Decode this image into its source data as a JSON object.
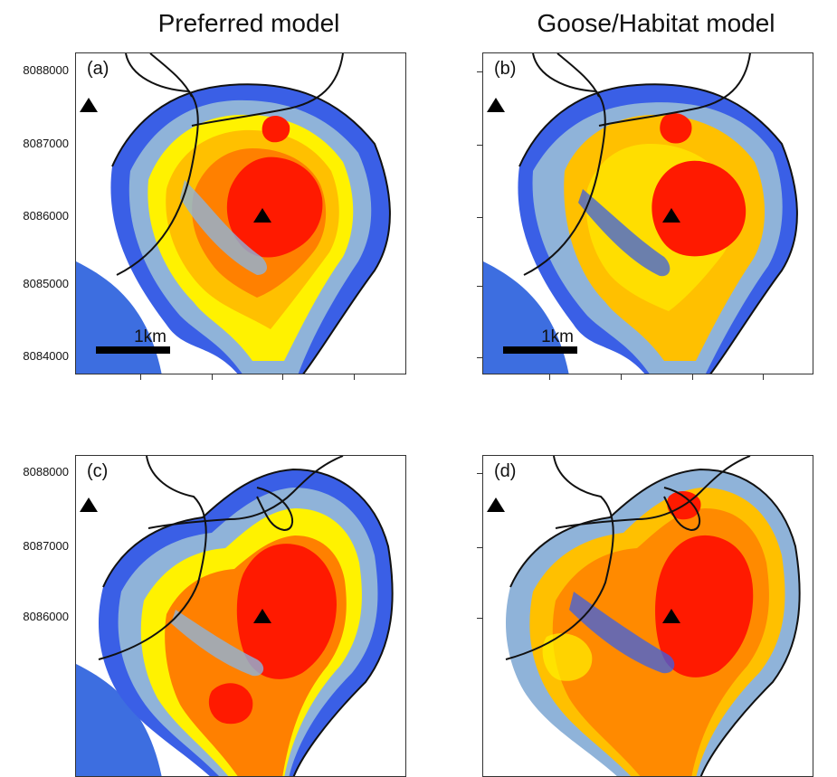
{
  "column_titles": {
    "left": "Preferred model",
    "right": "Goose/Habitat model"
  },
  "y_axis_labels": [
    "8088000",
    "8087000",
    "8086000",
    "8085000",
    "8084000"
  ],
  "panels": [
    {
      "label": "(a)",
      "scale_label": "1km",
      "has_scalebar": true
    },
    {
      "label": "(b)",
      "scale_label": "1km",
      "has_scalebar": true
    },
    {
      "label": "(c)",
      "scale_label": "",
      "has_scalebar": false
    },
    {
      "label": "(d)",
      "scale_label": "",
      "has_scalebar": false
    }
  ],
  "colors": {
    "water": "#3d6ee0",
    "low": "#3a5fe6",
    "low_mid": "#8fb3d9",
    "mid": "#fff200",
    "mid_high": "#ffc000",
    "high": "#ff8000",
    "very_high": "#ff1a00",
    "boundary": "#111111",
    "station": "#000000"
  },
  "icons": {
    "station": "triangle-up-icon",
    "water": "sea-area-icon"
  }
}
